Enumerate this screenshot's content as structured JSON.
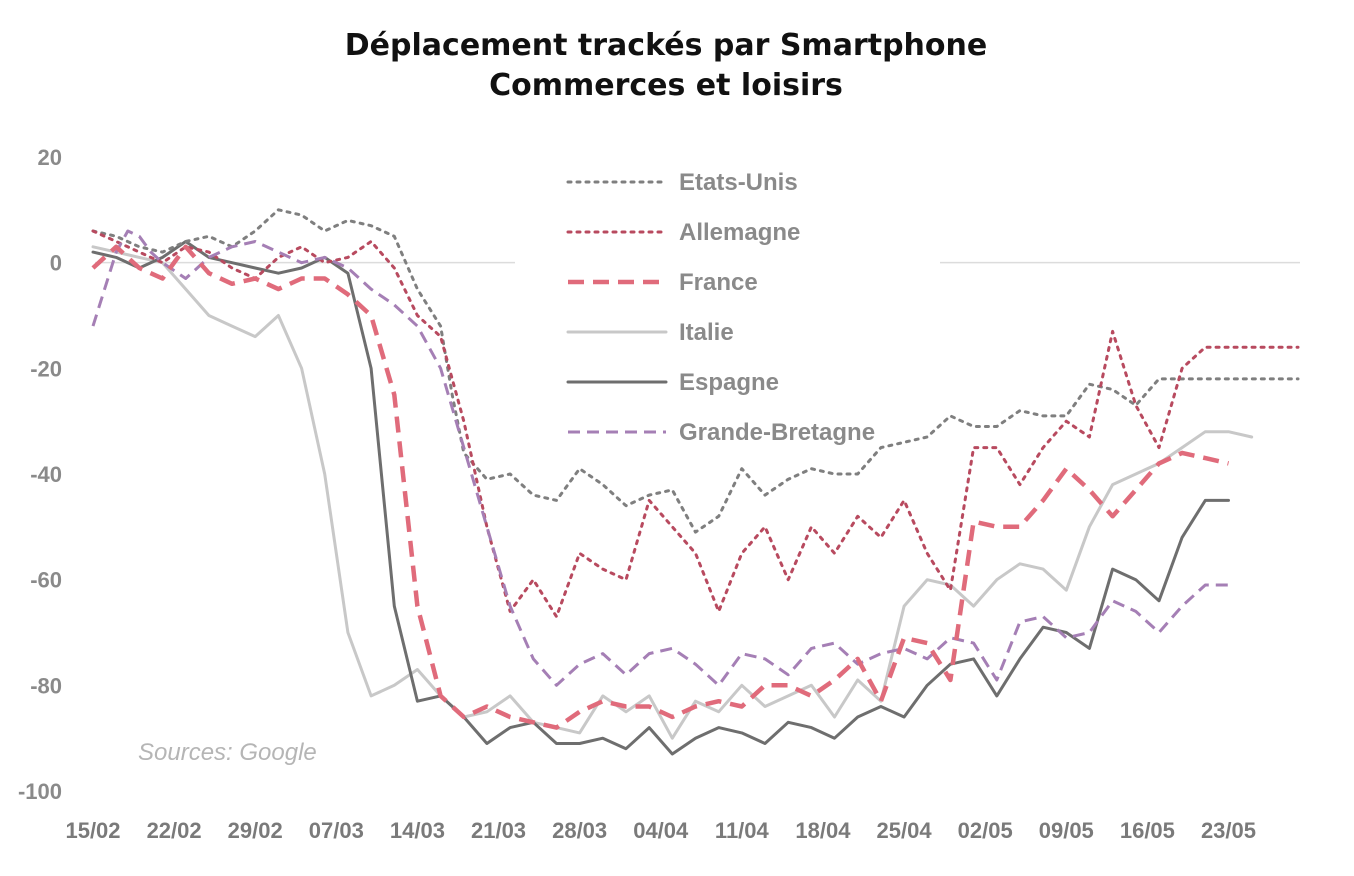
{
  "chart_data": {
    "type": "line",
    "title": "Déplacement trackés par Smartphone",
    "subtitle": "Commerces et loisirs",
    "source": "Sources: Google",
    "xlabel": "",
    "ylabel": "",
    "ylim": [
      -100,
      20
    ],
    "yticks": [
      20,
      0,
      -20,
      -40,
      -60,
      -80,
      -100
    ],
    "xticks": [
      "15/02",
      "22/02",
      "29/02",
      "07/03",
      "14/03",
      "21/03",
      "28/03",
      "04/04",
      "11/04",
      "18/04",
      "25/04",
      "02/05",
      "09/05",
      "16/05",
      "23/05"
    ],
    "grid": false,
    "zero_line": true,
    "legend_position": "top-center",
    "series": [
      {
        "name": "Etats-Unis",
        "color": "#7f7f7f",
        "style": "dotted",
        "x": [
          0,
          2,
          4,
          6,
          8,
          10,
          12,
          14,
          16,
          18,
          20,
          22,
          24,
          26,
          28,
          30,
          31,
          32,
          34,
          36,
          38,
          40,
          42,
          44,
          46,
          48,
          50,
          52,
          54,
          56,
          58,
          60,
          62,
          64,
          66,
          68,
          70,
          72,
          74,
          76,
          78,
          80,
          82,
          84,
          86,
          88,
          90,
          92,
          94,
          96,
          98,
          100,
          102,
          104
        ],
        "y": [
          6,
          5,
          3,
          2,
          4,
          5,
          3,
          6,
          10,
          9,
          6,
          8,
          7,
          5,
          -5,
          -12,
          -25,
          -36,
          -41,
          -40,
          -44,
          -45,
          -39,
          -42,
          -46,
          -44,
          -43,
          -51,
          -48,
          -39,
          -44,
          -41,
          -39,
          -40,
          -40,
          -35,
          -34,
          -33,
          -29,
          -31,
          -31,
          -28,
          -29,
          -29,
          -23,
          -24,
          -27,
          -22,
          -22,
          -22,
          -22,
          -22,
          -22,
          -22
        ]
      },
      {
        "name": "Allemagne",
        "color": "#b84a5f",
        "style": "dotted",
        "x": [
          0,
          2,
          4,
          6,
          8,
          10,
          12,
          14,
          16,
          18,
          20,
          22,
          24,
          26,
          28,
          30,
          32,
          34,
          36,
          38,
          40,
          42,
          44,
          46,
          48,
          50,
          52,
          54,
          56,
          58,
          60,
          62,
          64,
          66,
          68,
          70,
          72,
          74,
          76,
          78,
          80,
          82,
          84,
          86,
          88,
          90,
          92,
          94,
          96,
          98,
          100,
          102,
          104
        ],
        "y": [
          6,
          4,
          2,
          0,
          3,
          2,
          -1,
          -3,
          1,
          3,
          0,
          1,
          4,
          -1,
          -10,
          -14,
          -30,
          -50,
          -66,
          -60,
          -67,
          -55,
          -58,
          -60,
          -45,
          -50,
          -55,
          -66,
          -55,
          -50,
          -60,
          -50,
          -55,
          -48,
          -52,
          -45,
          -55,
          -62,
          -35,
          -35,
          -42,
          -35,
          -30,
          -33,
          -13,
          -27,
          -35,
          -20,
          -16,
          -16,
          -16,
          -16,
          -16
        ]
      },
      {
        "name": "France",
        "color": "#e06b7b",
        "style": "dashed",
        "x": [
          0,
          2,
          4,
          6,
          8,
          10,
          12,
          14,
          16,
          18,
          20,
          22,
          24,
          26,
          28,
          30,
          32,
          34,
          36,
          38,
          40,
          42,
          44,
          46,
          48,
          50,
          52,
          54,
          56,
          58,
          60,
          62,
          64,
          66,
          68,
          70,
          72,
          74,
          76,
          78,
          80,
          82,
          84,
          86,
          88,
          90,
          92,
          94,
          96,
          98
        ],
        "y": [
          -1,
          3,
          -1,
          -3,
          3,
          -2,
          -4,
          -3,
          -5,
          -3,
          -3,
          -6,
          -10,
          -25,
          -65,
          -82,
          -86,
          -84,
          -86,
          -87,
          -88,
          -85,
          -83,
          -84,
          -84,
          -86,
          -84,
          -83,
          -84,
          -80,
          -80,
          -82,
          -79,
          -75,
          -83,
          -71,
          -72,
          -79,
          -49,
          -50,
          -50,
          -45,
          -39,
          -43,
          -48,
          -43,
          -38,
          -36,
          -37,
          -38
        ]
      },
      {
        "name": "Italie",
        "color": "#c8c8c8",
        "style": "solid",
        "x": [
          0,
          2,
          4,
          6,
          8,
          10,
          12,
          14,
          16,
          18,
          20,
          22,
          24,
          26,
          28,
          30,
          32,
          34,
          36,
          38,
          40,
          42,
          44,
          46,
          48,
          50,
          52,
          54,
          56,
          58,
          60,
          62,
          64,
          66,
          68,
          70,
          72,
          74,
          76,
          78,
          80,
          82,
          84,
          86,
          88,
          90,
          92,
          94,
          96,
          98,
          100
        ],
        "y": [
          3,
          2,
          1,
          0,
          -5,
          -10,
          -12,
          -14,
          -10,
          -20,
          -40,
          -70,
          -82,
          -80,
          -77,
          -82,
          -86,
          -85,
          -82,
          -87,
          -88,
          -89,
          -82,
          -85,
          -82,
          -90,
          -83,
          -85,
          -80,
          -84,
          -82,
          -80,
          -86,
          -79,
          -83,
          -65,
          -60,
          -61,
          -65,
          -60,
          -57,
          -58,
          -62,
          -50,
          -42,
          -40,
          -38,
          -35,
          -32,
          -32,
          -33
        ]
      },
      {
        "name": "Espagne",
        "color": "#6e6e6e",
        "style": "solid",
        "x": [
          0,
          2,
          4,
          6,
          8,
          10,
          12,
          14,
          16,
          18,
          20,
          22,
          24,
          26,
          28,
          30,
          32,
          34,
          36,
          38,
          40,
          42,
          44,
          46,
          48,
          50,
          52,
          54,
          56,
          58,
          60,
          62,
          64,
          66,
          68,
          70,
          72,
          74,
          76,
          78,
          80,
          82,
          84,
          86,
          88,
          90,
          92,
          94,
          96,
          98
        ],
        "y": [
          2,
          1,
          -1,
          1,
          4,
          1,
          0,
          -1,
          -2,
          -1,
          1,
          -2,
          -20,
          -65,
          -83,
          -82,
          -86,
          -91,
          -88,
          -87,
          -91,
          -91,
          -90,
          -92,
          -88,
          -93,
          -90,
          -88,
          -89,
          -91,
          -87,
          -88,
          -90,
          -86,
          -84,
          -86,
          -80,
          -76,
          -75,
          -82,
          -75,
          -69,
          -70,
          -73,
          -58,
          -60,
          -64,
          -52,
          -45,
          -45
        ]
      },
      {
        "name": "Grande-Bretagne",
        "color": "#a57fb5",
        "style": "dashed",
        "x": [
          0,
          1,
          2,
          3,
          4,
          5,
          6,
          8,
          10,
          12,
          14,
          16,
          18,
          20,
          22,
          24,
          26,
          28,
          30,
          32,
          34,
          36,
          38,
          40,
          42,
          44,
          46,
          48,
          50,
          52,
          54,
          56,
          58,
          60,
          62,
          64,
          66,
          68,
          70,
          72,
          74,
          76,
          78,
          80,
          82,
          84,
          86,
          88,
          90,
          92,
          94,
          96,
          98
        ],
        "y": [
          -12,
          -5,
          2,
          6,
          5,
          2,
          0,
          -3,
          1,
          3,
          4,
          2,
          0,
          1,
          -1,
          -5,
          -8,
          -12,
          -20,
          -35,
          -50,
          -65,
          -75,
          -80,
          -76,
          -74,
          -78,
          -74,
          -73,
          -76,
          -80,
          -74,
          -75,
          -78,
          -73,
          -72,
          -76,
          -74,
          -73,
          -75,
          -71,
          -72,
          -79,
          -68,
          -67,
          -71,
          -70,
          -64,
          -66,
          -70,
          -65,
          -61,
          -61
        ]
      }
    ]
  }
}
